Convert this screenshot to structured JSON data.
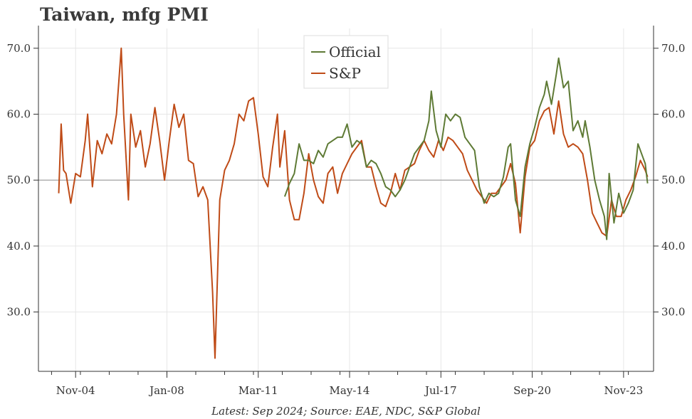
{
  "chart_data": {
    "type": "line",
    "title": "Taiwan, mfg PMI",
    "caption": "Latest: Sep 2024; Source: EAE, NDC, S&P Global",
    "x_range": [
      "2004-01",
      "2024-09"
    ],
    "ylim": [
      21,
      73
    ],
    "y_ticks": [
      30.0,
      40.0,
      50.0,
      60.0,
      70.0
    ],
    "y_tick_labels": [
      "30.0",
      "40.0",
      "50.0",
      "60.0",
      "70.0"
    ],
    "x_ticks": [
      "2004-11",
      "2008-01",
      "2011-03",
      "2014-05",
      "2017-07",
      "2020-09",
      "2023-11"
    ],
    "x_tick_labels": [
      "Nov-04",
      "Jan-08",
      "Mar-11",
      "May-14",
      "Jul-17",
      "Sep-20",
      "Nov-23"
    ],
    "reference_line": 50.0,
    "grid": true,
    "legend_position": "top-center",
    "series": [
      {
        "name": "Official",
        "color": "#5e7a35",
        "points": [
          [
            "2012-02",
            47.5
          ],
          [
            "2012-04",
            49.5
          ],
          [
            "2012-06",
            51.0
          ],
          [
            "2012-08",
            55.5
          ],
          [
            "2012-10",
            53.0
          ],
          [
            "2012-12",
            53.0
          ],
          [
            "2013-02",
            52.5
          ],
          [
            "2013-04",
            54.5
          ],
          [
            "2013-06",
            53.5
          ],
          [
            "2013-08",
            55.5
          ],
          [
            "2013-10",
            56.0
          ],
          [
            "2013-12",
            56.5
          ],
          [
            "2014-02",
            56.5
          ],
          [
            "2014-04",
            58.5
          ],
          [
            "2014-06",
            55.0
          ],
          [
            "2014-08",
            56.0
          ],
          [
            "2014-10",
            55.5
          ],
          [
            "2014-12",
            52.0
          ],
          [
            "2015-02",
            53.0
          ],
          [
            "2015-04",
            52.5
          ],
          [
            "2015-06",
            51.0
          ],
          [
            "2015-08",
            49.0
          ],
          [
            "2015-10",
            48.5
          ],
          [
            "2015-12",
            47.5
          ],
          [
            "2016-02",
            48.5
          ],
          [
            "2016-04",
            50.0
          ],
          [
            "2016-06",
            52.0
          ],
          [
            "2016-08",
            54.0
          ],
          [
            "2016-10",
            55.0
          ],
          [
            "2016-12",
            56.0
          ],
          [
            "2017-02",
            59.0
          ],
          [
            "2017-03",
            63.5
          ],
          [
            "2017-05",
            57.5
          ],
          [
            "2017-07",
            55.0
          ],
          [
            "2017-09",
            60.0
          ],
          [
            "2017-11",
            59.0
          ],
          [
            "2018-01",
            60.0
          ],
          [
            "2018-03",
            59.5
          ],
          [
            "2018-05",
            56.5
          ],
          [
            "2018-07",
            55.5
          ],
          [
            "2018-09",
            54.5
          ],
          [
            "2018-11",
            49.0
          ],
          [
            "2019-01",
            46.5
          ],
          [
            "2019-03",
            48.0
          ],
          [
            "2019-05",
            47.5
          ],
          [
            "2019-07",
            48.0
          ],
          [
            "2019-09",
            50.5
          ],
          [
            "2019-11",
            55.0
          ],
          [
            "2019-12",
            55.5
          ],
          [
            "2020-02",
            47.0
          ],
          [
            "2020-04",
            44.5
          ],
          [
            "2020-06",
            52.0
          ],
          [
            "2020-08",
            55.5
          ],
          [
            "2020-10",
            58.0
          ],
          [
            "2020-12",
            61.0
          ],
          [
            "2021-02",
            63.0
          ],
          [
            "2021-03",
            65.0
          ],
          [
            "2021-05",
            61.5
          ],
          [
            "2021-07",
            66.0
          ],
          [
            "2021-08",
            68.5
          ],
          [
            "2021-10",
            64.0
          ],
          [
            "2021-12",
            65.0
          ],
          [
            "2022-02",
            57.5
          ],
          [
            "2022-04",
            59.0
          ],
          [
            "2022-06",
            56.5
          ],
          [
            "2022-07",
            59.0
          ],
          [
            "2022-09",
            55.0
          ],
          [
            "2022-11",
            50.0
          ],
          [
            "2023-01",
            47.0
          ],
          [
            "2023-03",
            44.5
          ],
          [
            "2023-04",
            41.0
          ],
          [
            "2023-05",
            51.0
          ],
          [
            "2023-07",
            43.5
          ],
          [
            "2023-09",
            48.0
          ],
          [
            "2023-11",
            45.0
          ],
          [
            "2024-01",
            46.5
          ],
          [
            "2024-03",
            48.5
          ],
          [
            "2024-05",
            55.5
          ],
          [
            "2024-07",
            53.5
          ],
          [
            "2024-08",
            52.5
          ],
          [
            "2024-09",
            49.5
          ]
        ]
      },
      {
        "name": "S&P",
        "color": "#bf4b17",
        "points": [
          [
            "2004-04",
            48.0
          ],
          [
            "2004-05",
            58.5
          ],
          [
            "2004-06",
            51.5
          ],
          [
            "2004-07",
            51.0
          ],
          [
            "2004-09",
            46.5
          ],
          [
            "2004-11",
            51.0
          ],
          [
            "2005-01",
            50.5
          ],
          [
            "2005-03",
            56.0
          ],
          [
            "2005-04",
            60.0
          ],
          [
            "2005-06",
            49.0
          ],
          [
            "2005-08",
            56.0
          ],
          [
            "2005-10",
            54.0
          ],
          [
            "2005-12",
            57.0
          ],
          [
            "2006-02",
            55.5
          ],
          [
            "2006-04",
            60.0
          ],
          [
            "2006-06",
            70.0
          ],
          [
            "2006-07",
            60.0
          ],
          [
            "2006-09",
            47.0
          ],
          [
            "2006-10",
            60.0
          ],
          [
            "2006-12",
            55.0
          ],
          [
            "2007-02",
            57.5
          ],
          [
            "2007-04",
            52.0
          ],
          [
            "2007-06",
            55.5
          ],
          [
            "2007-08",
            61.0
          ],
          [
            "2007-10",
            56.0
          ],
          [
            "2007-12",
            50.0
          ],
          [
            "2008-02",
            56.0
          ],
          [
            "2008-04",
            61.5
          ],
          [
            "2008-06",
            58.0
          ],
          [
            "2008-08",
            60.0
          ],
          [
            "2008-10",
            53.0
          ],
          [
            "2008-12",
            52.5
          ],
          [
            "2009-02",
            47.5
          ],
          [
            "2009-04",
            49.0
          ],
          [
            "2009-06",
            47.0
          ],
          [
            "2009-08",
            33.0
          ],
          [
            "2009-09",
            23.0
          ],
          [
            "2009-11",
            47.0
          ],
          [
            "2010-01",
            51.5
          ],
          [
            "2010-03",
            53.0
          ],
          [
            "2010-05",
            55.5
          ],
          [
            "2010-07",
            60.0
          ],
          [
            "2010-09",
            59.0
          ],
          [
            "2010-11",
            62.0
          ],
          [
            "2011-01",
            62.5
          ],
          [
            "2011-03",
            57.0
          ],
          [
            "2011-05",
            50.5
          ],
          [
            "2011-07",
            49.0
          ],
          [
            "2011-09",
            55.0
          ],
          [
            "2011-11",
            60.0
          ],
          [
            "2011-12",
            52.0
          ],
          [
            "2012-02",
            57.5
          ],
          [
            "2012-04",
            47.0
          ],
          [
            "2012-06",
            44.0
          ],
          [
            "2012-08",
            44.0
          ],
          [
            "2012-10",
            48.0
          ],
          [
            "2012-12",
            54.0
          ],
          [
            "2013-02",
            50.0
          ],
          [
            "2013-04",
            47.5
          ],
          [
            "2013-06",
            46.5
          ],
          [
            "2013-08",
            51.0
          ],
          [
            "2013-10",
            52.0
          ],
          [
            "2013-12",
            48.0
          ],
          [
            "2014-02",
            51.0
          ],
          [
            "2014-04",
            52.5
          ],
          [
            "2014-06",
            54.0
          ],
          [
            "2014-08",
            55.0
          ],
          [
            "2014-10",
            56.0
          ],
          [
            "2014-12",
            52.0
          ],
          [
            "2015-02",
            52.0
          ],
          [
            "2015-04",
            49.0
          ],
          [
            "2015-06",
            46.5
          ],
          [
            "2015-08",
            46.0
          ],
          [
            "2015-10",
            48.0
          ],
          [
            "2015-12",
            51.0
          ],
          [
            "2016-02",
            48.5
          ],
          [
            "2016-04",
            51.5
          ],
          [
            "2016-06",
            52.0
          ],
          [
            "2016-08",
            52.5
          ],
          [
            "2016-10",
            54.5
          ],
          [
            "2016-12",
            56.0
          ],
          [
            "2017-02",
            54.5
          ],
          [
            "2017-04",
            53.5
          ],
          [
            "2017-06",
            56.0
          ],
          [
            "2017-08",
            54.5
          ],
          [
            "2017-10",
            56.5
          ],
          [
            "2017-12",
            56.0
          ],
          [
            "2018-02",
            55.0
          ],
          [
            "2018-04",
            54.0
          ],
          [
            "2018-06",
            51.5
          ],
          [
            "2018-08",
            50.0
          ],
          [
            "2018-10",
            48.5
          ],
          [
            "2018-12",
            47.5
          ],
          [
            "2019-02",
            46.5
          ],
          [
            "2019-04",
            48.0
          ],
          [
            "2019-06",
            48.0
          ],
          [
            "2019-08",
            49.0
          ],
          [
            "2019-10",
            50.0
          ],
          [
            "2019-12",
            52.5
          ],
          [
            "2020-02",
            49.5
          ],
          [
            "2020-04",
            42.0
          ],
          [
            "2020-06",
            50.5
          ],
          [
            "2020-08",
            55.0
          ],
          [
            "2020-10",
            56.0
          ],
          [
            "2020-12",
            59.0
          ],
          [
            "2021-02",
            60.5
          ],
          [
            "2021-04",
            61.0
          ],
          [
            "2021-06",
            57.0
          ],
          [
            "2021-08",
            62.0
          ],
          [
            "2021-10",
            57.0
          ],
          [
            "2021-12",
            55.0
          ],
          [
            "2022-02",
            55.5
          ],
          [
            "2022-04",
            55.0
          ],
          [
            "2022-06",
            54.0
          ],
          [
            "2022-08",
            50.0
          ],
          [
            "2022-10",
            45.0
          ],
          [
            "2022-12",
            43.5
          ],
          [
            "2023-02",
            42.0
          ],
          [
            "2023-04",
            41.5
          ],
          [
            "2023-06",
            47.0
          ],
          [
            "2023-08",
            44.5
          ],
          [
            "2023-10",
            44.5
          ],
          [
            "2023-12",
            47.0
          ],
          [
            "2024-02",
            48.5
          ],
          [
            "2024-04",
            50.5
          ],
          [
            "2024-06",
            53.0
          ],
          [
            "2024-08",
            51.5
          ],
          [
            "2024-09",
            50.5
          ]
        ]
      }
    ]
  }
}
